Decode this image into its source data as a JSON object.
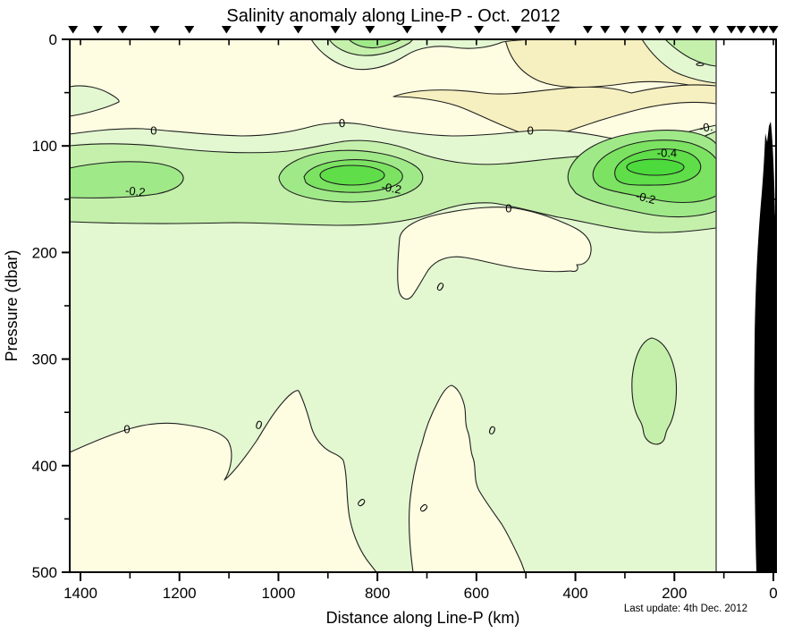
{
  "chart_data": {
    "type": "contour",
    "title": "Salinity anomaly along Line-P - Oct.  2012",
    "xlabel": "Distance along Line-P (km)",
    "ylabel": "Pressure (dbar)",
    "footnote": "Last update: 4th Dec. 2012",
    "xlim": [
      1400,
      0
    ],
    "ylim": [
      0,
      500
    ],
    "x_axis_reversed": true,
    "y_axis_increases_downward": true,
    "x_major_ticks": [
      1400,
      1200,
      1000,
      800,
      600,
      400,
      200,
      0
    ],
    "x_minor_step": 100,
    "y_major_ticks": [
      0,
      100,
      200,
      300,
      400,
      500
    ],
    "y_minor_step": 50,
    "contour_interval": 0.1,
    "labeled_levels": [
      0,
      -0.2,
      -0.4
    ],
    "fill_levels": [
      {
        "range": "> +0.1",
        "color": "#f6efbf"
      },
      {
        "range": "0 to +0.1",
        "color": "#fffde1"
      },
      {
        "range": "-0.1 to 0",
        "color": "#e3f7d1"
      },
      {
        "range": "-0.2 to -0.1",
        "color": "#c5f0ac"
      },
      {
        "range": "-0.3 to -0.2",
        "color": "#a0e989"
      },
      {
        "range": "-0.4 to -0.3",
        "color": "#7ce262"
      },
      {
        "range": "-0.5 to -0.4",
        "color": "#5fde49"
      },
      {
        "range": "< -0.5",
        "color": "#4cda3c"
      }
    ],
    "station_markers_km": [
      1415,
      1365,
      1315,
      1250,
      1180,
      1105,
      1035,
      960,
      885,
      815,
      740,
      670,
      595,
      520,
      450,
      375,
      340,
      300,
      265,
      230,
      195,
      155,
      120,
      85,
      65,
      40,
      20,
      0
    ],
    "contour_labels": [
      {
        "text": "0",
        "km": 1252,
        "dbar": 86,
        "rot": 0
      },
      {
        "text": "0",
        "km": 871,
        "dbar": 79,
        "rot": -4
      },
      {
        "text": "0",
        "km": 491,
        "dbar": 86,
        "rot": 0
      },
      {
        "text": "-0.2",
        "km": 1290,
        "dbar": 143,
        "rot": 6
      },
      {
        "text": "-0.2",
        "km": 773,
        "dbar": 140,
        "rot": 10
      },
      {
        "text": "-0.2",
        "km": 260,
        "dbar": 149,
        "rot": 14
      },
      {
        "text": "-0.4",
        "km": 215,
        "dbar": 107,
        "rot": 0
      },
      {
        "text": "-0.",
        "km": 135,
        "dbar": 83,
        "rot": -8
      },
      {
        "text": "0",
        "km": 535,
        "dbar": 159,
        "rot": 0
      },
      {
        "text": "0",
        "km": 677,
        "dbar": 232,
        "rot": 30
      },
      {
        "text": "0",
        "km": 1306,
        "dbar": 366,
        "rot": 0
      },
      {
        "text": "0",
        "km": 1042,
        "dbar": 362,
        "rot": 18
      },
      {
        "text": "0",
        "km": 571,
        "dbar": 367,
        "rot": 20
      },
      {
        "text": "0",
        "km": 712,
        "dbar": 439,
        "rot": 45
      },
      {
        "text": "0",
        "km": 838,
        "dbar": 434,
        "rot": 45
      }
    ],
    "features": [
      {
        "name": "fresh anomaly band",
        "dbar": "90-170",
        "extent_km": "0-1420",
        "level": "<= -0.1"
      },
      {
        "name": "fresh core west",
        "km": 1290,
        "dbar": 130,
        "level": "<= -0.2"
      },
      {
        "name": "fresh core mid",
        "km": 850,
        "dbar": 125,
        "level": "<= -0.4"
      },
      {
        "name": "fresh core east",
        "km": 230,
        "dbar": 120,
        "level": "< -0.5"
      },
      {
        "name": "fresh pocket deep east",
        "km": 230,
        "dbar": "280-375",
        "level": "<= -0.1"
      },
      {
        "name": "surface fresh blob",
        "km": "720-930",
        "dbar": "0-25",
        "level": "<= -0.2"
      },
      {
        "name": "positive patch upper east",
        "km": "120-540",
        "dbar": "5-120",
        "level": "> +0.1"
      },
      {
        "name": "positive island mid-depth",
        "km": "350-760",
        "dbar": "155-245",
        "level": "> 0"
      },
      {
        "name": "positive region deep west",
        "km": "820-1420",
        "dbar": "370-500",
        "level": "> 0"
      },
      {
        "name": "positive tower deep mid",
        "km": "500-570",
        "dbar": "325-500",
        "level": "> 0"
      },
      {
        "name": "coastal seafloor silhouette",
        "km": "0-45",
        "dbar": "80-500",
        "note": "black land/bathymetry fill at eastern end"
      }
    ]
  },
  "colors": {
    "pos": "#f6efbf",
    "zero": "#fffde1",
    "n01": "#e3f7d1",
    "n12": "#c5f0ac",
    "n23": "#a0e989",
    "n34": "#7ce262",
    "n45": "#5fde49",
    "n5": "#4cda3c",
    "land": "#000000"
  }
}
